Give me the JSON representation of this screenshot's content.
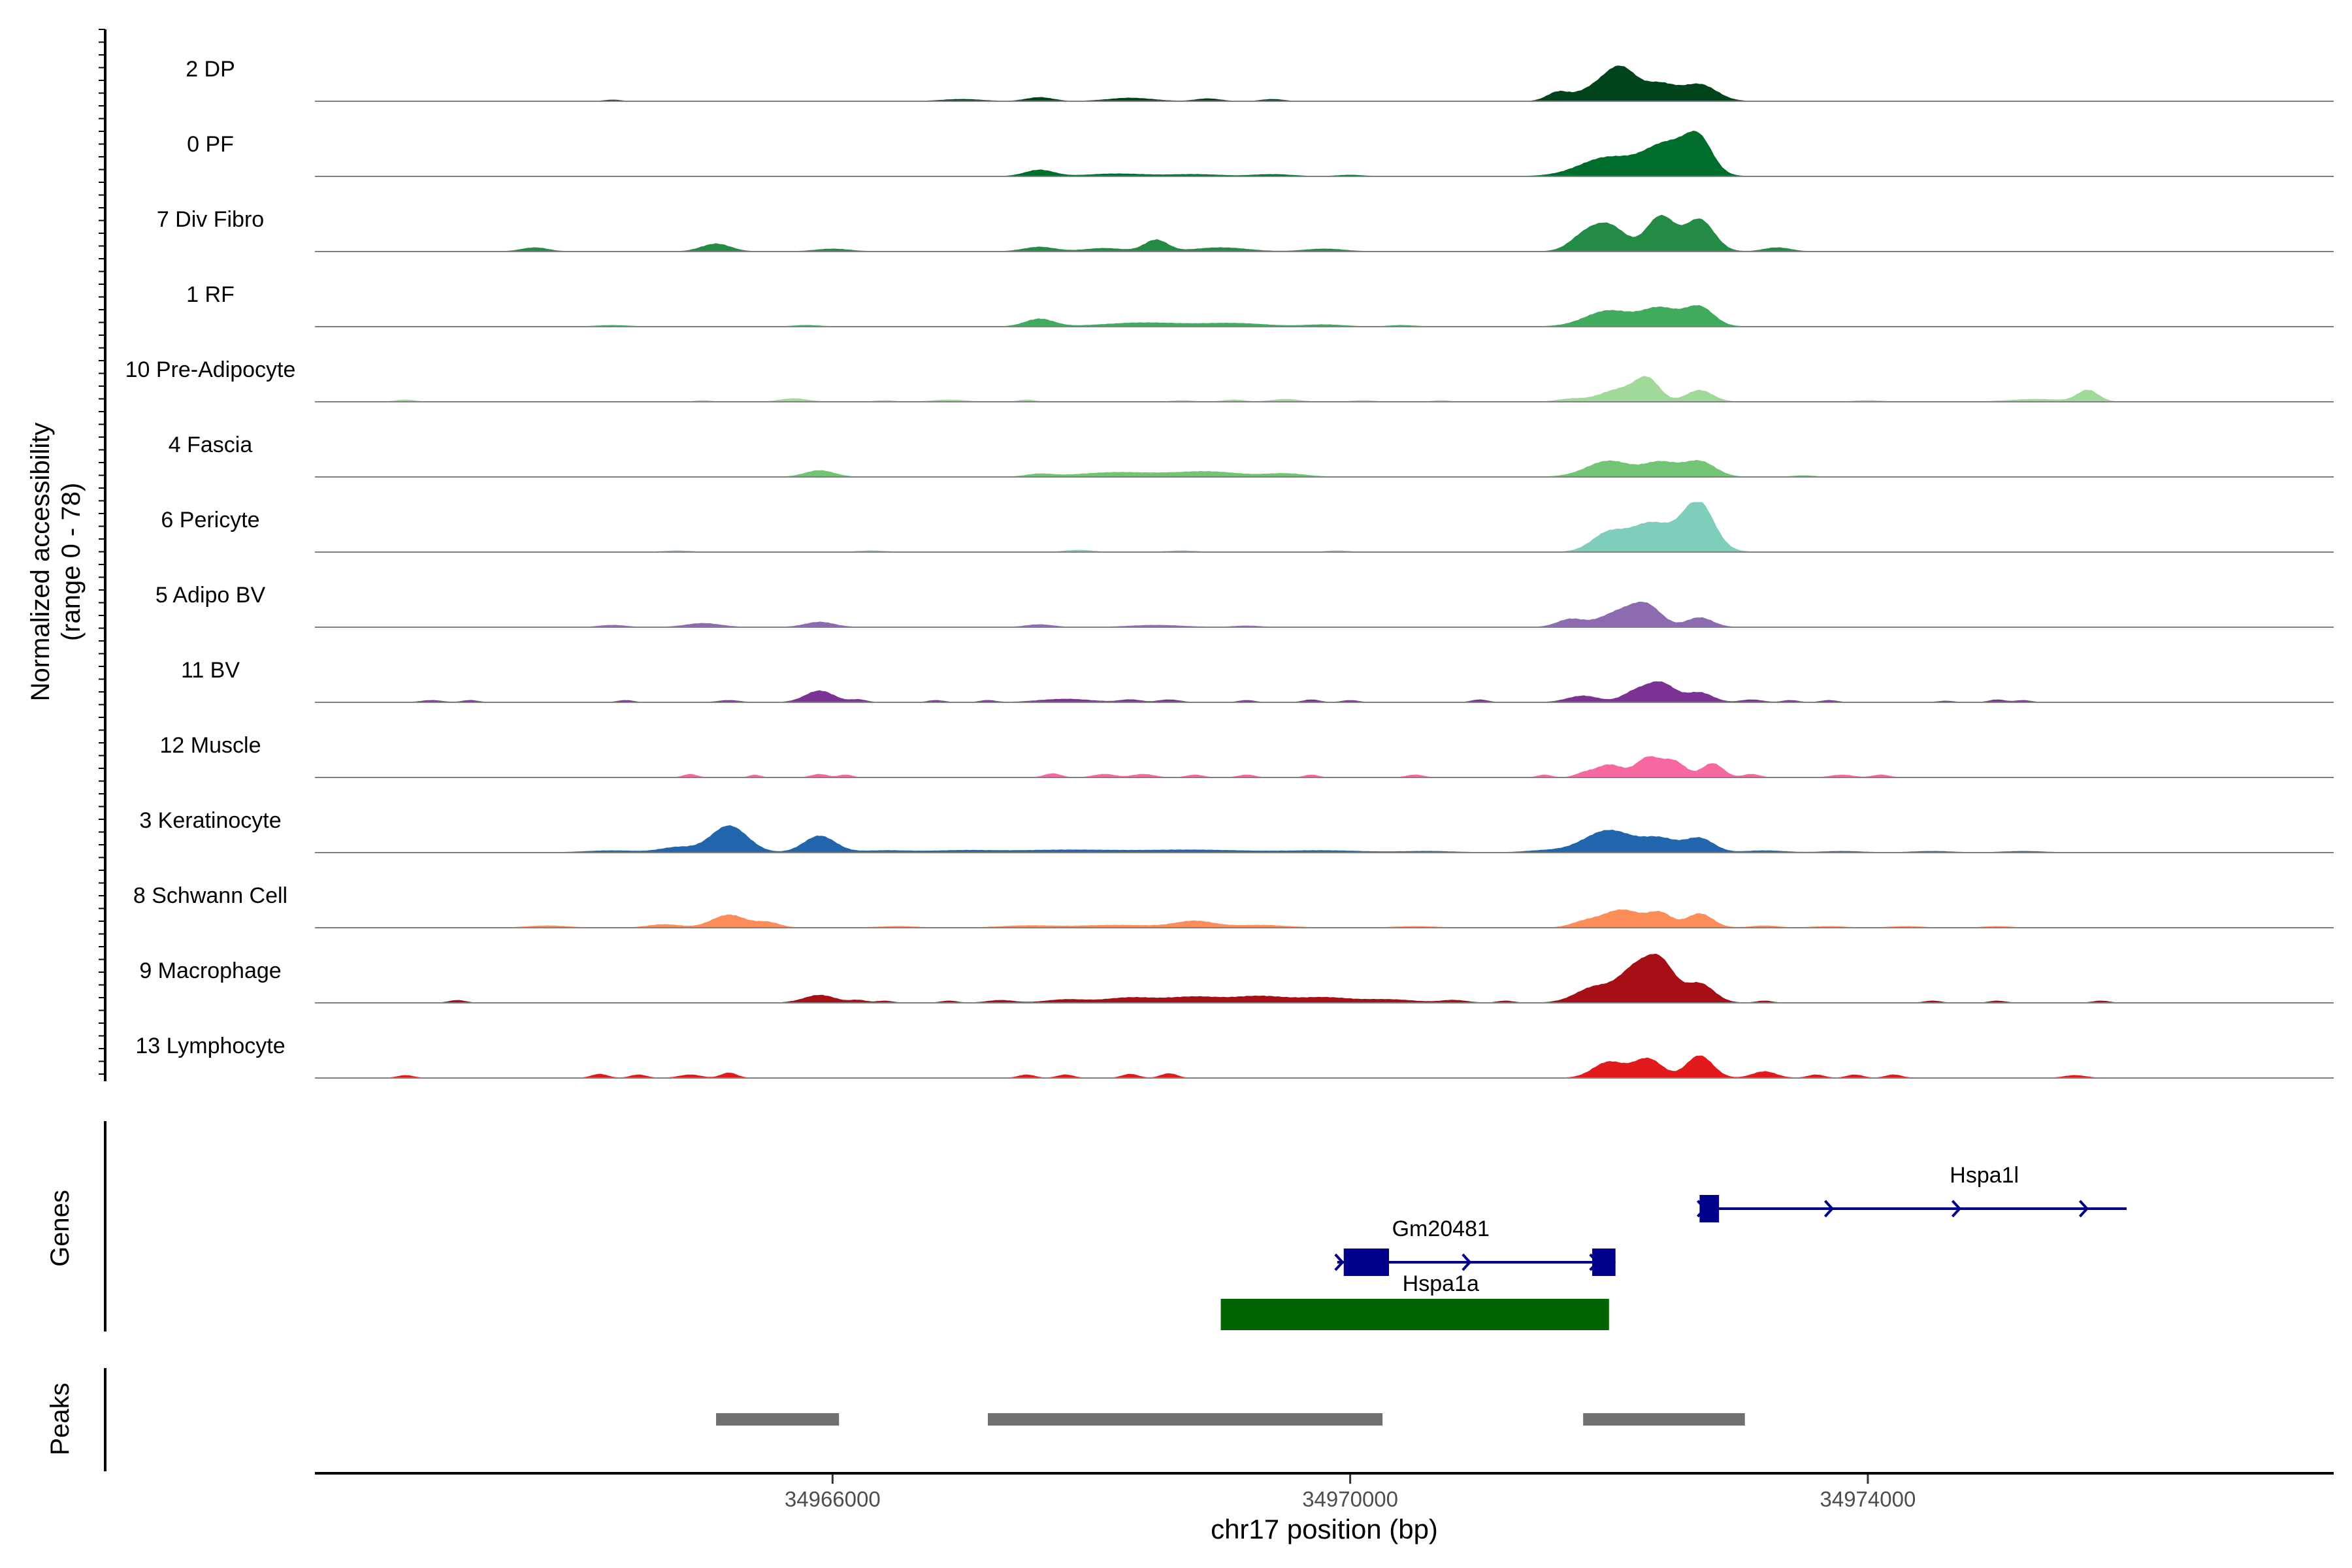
{
  "chart_data": {
    "type": "area",
    "title": "",
    "ylabel_line1": "Normalized accessibility",
    "ylabel_line2": "(range 0 - 78)",
    "xlabel": "chr17 position (bp)",
    "ylim": [
      0,
      78
    ],
    "xlim": [
      34962000,
      34977600
    ],
    "x_ticks": [
      {
        "value": 34966000,
        "label": "34966000"
      },
      {
        "value": 34970000,
        "label": "34970000"
      },
      {
        "value": 34974000,
        "label": "34974000"
      }
    ],
    "series": [
      {
        "name": "2 DP",
        "color": "#00441b",
        "peaks": [
          [
            34964300,
            2,
            60
          ],
          [
            34967000,
            3,
            150
          ],
          [
            34967600,
            6,
            100
          ],
          [
            34968300,
            5,
            170
          ],
          [
            34968900,
            4,
            90
          ],
          [
            34969400,
            3,
            80
          ],
          [
            34971600,
            12,
            80
          ],
          [
            34972000,
            30,
            190
          ],
          [
            34972100,
            28,
            110
          ],
          [
            34972400,
            24,
            120
          ],
          [
            34972700,
            26,
            130
          ]
        ]
      },
      {
        "name": "0 PF",
        "color": "#006d2c",
        "peaks": [
          [
            34967600,
            10,
            110
          ],
          [
            34968200,
            4,
            220
          ],
          [
            34968800,
            3,
            200
          ],
          [
            34969400,
            3,
            150
          ],
          [
            34970000,
            2,
            100
          ],
          [
            34972000,
            30,
            220
          ],
          [
            34972400,
            35,
            150
          ],
          [
            34972700,
            40,
            100
          ],
          [
            34972600,
            28,
            150
          ]
        ]
      },
      {
        "name": "7 Div Fibro",
        "color": "#238b45",
        "peaks": [
          [
            34963700,
            6,
            100
          ],
          [
            34965100,
            12,
            110
          ],
          [
            34966000,
            4,
            130
          ],
          [
            34967600,
            7,
            120
          ],
          [
            34968100,
            5,
            150
          ],
          [
            34968500,
            18,
            90
          ],
          [
            34969000,
            6,
            200
          ],
          [
            34969800,
            4,
            150
          ],
          [
            34971800,
            20,
            110
          ],
          [
            34972000,
            40,
            130
          ],
          [
            34972400,
            55,
            110
          ],
          [
            34972700,
            50,
            110
          ],
          [
            34973300,
            6,
            100
          ]
        ]
      },
      {
        "name": "1 RF",
        "color": "#41ab5d",
        "peaks": [
          [
            34964300,
            2,
            120
          ],
          [
            34965800,
            2,
            100
          ],
          [
            34967600,
            12,
            110
          ],
          [
            34968400,
            6,
            300
          ],
          [
            34969100,
            5,
            250
          ],
          [
            34969800,
            3,
            150
          ],
          [
            34970400,
            2,
            100
          ],
          [
            34972000,
            25,
            180
          ],
          [
            34972400,
            28,
            140
          ],
          [
            34972700,
            30,
            110
          ]
        ]
      },
      {
        "name": "10 Pre-Adipocyte",
        "color": "#a1d99b",
        "peaks": [
          [
            34962700,
            3,
            70
          ],
          [
            34965000,
            2,
            60
          ],
          [
            34965700,
            5,
            100
          ],
          [
            34966400,
            2,
            70
          ],
          [
            34966900,
            3,
            120
          ],
          [
            34967500,
            3,
            60
          ],
          [
            34968700,
            2,
            80
          ],
          [
            34969100,
            3,
            80
          ],
          [
            34969500,
            4,
            100
          ],
          [
            34970100,
            2,
            80
          ],
          [
            34970700,
            2,
            60
          ],
          [
            34971700,
            4,
            100
          ],
          [
            34972100,
            20,
            160
          ],
          [
            34972300,
            30,
            90
          ],
          [
            34972700,
            18,
            100
          ],
          [
            34974000,
            2,
            100
          ],
          [
            34975300,
            4,
            200
          ],
          [
            34975700,
            18,
            80
          ]
        ]
      },
      {
        "name": "4 Fascia",
        "color": "#74c476",
        "peaks": [
          [
            34965900,
            10,
            110
          ],
          [
            34967600,
            4,
            100
          ],
          [
            34968200,
            7,
            300
          ],
          [
            34968900,
            8,
            250
          ],
          [
            34969500,
            5,
            150
          ],
          [
            34972000,
            25,
            170
          ],
          [
            34972400,
            22,
            130
          ],
          [
            34972700,
            24,
            120
          ],
          [
            34973500,
            2,
            80
          ]
        ]
      },
      {
        "name": "6 Pericyte",
        "color": "#7fcdbb",
        "peaks": [
          [
            34964800,
            2,
            100
          ],
          [
            34966300,
            2,
            100
          ],
          [
            34967900,
            3,
            100
          ],
          [
            34968700,
            2,
            100
          ],
          [
            34969900,
            2,
            80
          ],
          [
            34972000,
            30,
            130
          ],
          [
            34972300,
            38,
            140
          ],
          [
            34972700,
            55,
            110
          ],
          [
            34972600,
            30,
            170
          ]
        ]
      },
      {
        "name": "5 Adipo BV",
        "color": "#8c6bb1",
        "peaks": [
          [
            34964300,
            3,
            100
          ],
          [
            34965000,
            6,
            130
          ],
          [
            34965900,
            8,
            110
          ],
          [
            34967600,
            4,
            100
          ],
          [
            34968500,
            3,
            200
          ],
          [
            34969200,
            2,
            100
          ],
          [
            34971700,
            12,
            100
          ],
          [
            34972100,
            25,
            160
          ],
          [
            34972300,
            26,
            110
          ],
          [
            34972700,
            15,
            100
          ]
        ]
      },
      {
        "name": "11 BV",
        "color": "#7b3294",
        "peaks": [
          [
            34962900,
            3,
            80
          ],
          [
            34963200,
            3,
            60
          ],
          [
            34964400,
            3,
            60
          ],
          [
            34965200,
            3,
            80
          ],
          [
            34965900,
            18,
            110
          ],
          [
            34966200,
            4,
            60
          ],
          [
            34966800,
            3,
            60
          ],
          [
            34967200,
            3,
            60
          ],
          [
            34967800,
            5,
            200
          ],
          [
            34968300,
            4,
            80
          ],
          [
            34968600,
            4,
            80
          ],
          [
            34969200,
            3,
            60
          ],
          [
            34969700,
            4,
            60
          ],
          [
            34970000,
            3,
            60
          ],
          [
            34971000,
            4,
            60
          ],
          [
            34971800,
            10,
            120
          ],
          [
            34972200,
            15,
            100
          ],
          [
            34972400,
            30,
            110
          ],
          [
            34972700,
            15,
            100
          ],
          [
            34973100,
            4,
            80
          ],
          [
            34973400,
            3,
            60
          ],
          [
            34973700,
            3,
            60
          ],
          [
            34974600,
            2,
            60
          ],
          [
            34975000,
            4,
            60
          ],
          [
            34975200,
            3,
            60
          ]
        ]
      },
      {
        "name": "12 Muscle",
        "color": "#f768a1",
        "peaks": [
          [
            34964900,
            5,
            50
          ],
          [
            34965400,
            4,
            40
          ],
          [
            34965900,
            5,
            60
          ],
          [
            34966100,
            4,
            50
          ],
          [
            34967700,
            6,
            60
          ],
          [
            34968100,
            5,
            80
          ],
          [
            34968400,
            5,
            80
          ],
          [
            34968800,
            4,
            60
          ],
          [
            34969200,
            4,
            60
          ],
          [
            34969700,
            4,
            50
          ],
          [
            34970500,
            4,
            60
          ],
          [
            34971500,
            4,
            50
          ],
          [
            34971800,
            5,
            60
          ],
          [
            34972000,
            20,
            110
          ],
          [
            34972300,
            30,
            90
          ],
          [
            34972500,
            25,
            90
          ],
          [
            34972800,
            22,
            80
          ],
          [
            34973100,
            5,
            60
          ],
          [
            34973800,
            4,
            80
          ],
          [
            34974100,
            4,
            60
          ]
        ]
      },
      {
        "name": "3 Keratinocyte",
        "color": "#2166ac",
        "peaks": [
          [
            34964300,
            3,
            200
          ],
          [
            34964800,
            8,
            130
          ],
          [
            34965200,
            42,
            140
          ],
          [
            34965900,
            26,
            120
          ],
          [
            34966400,
            3,
            200
          ],
          [
            34967000,
            3,
            250
          ],
          [
            34967800,
            4,
            400
          ],
          [
            34968800,
            4,
            400
          ],
          [
            34969800,
            3,
            300
          ],
          [
            34970600,
            2,
            200
          ],
          [
            34971500,
            3,
            150
          ],
          [
            34972000,
            35,
            190
          ],
          [
            34972400,
            20,
            130
          ],
          [
            34972700,
            22,
            110
          ],
          [
            34973200,
            3,
            150
          ],
          [
            34973800,
            2,
            150
          ],
          [
            34974500,
            2,
            150
          ],
          [
            34975200,
            2,
            150
          ]
        ]
      },
      {
        "name": "8 Schwann Cell",
        "color": "#fc8d59",
        "peaks": [
          [
            34963800,
            3,
            150
          ],
          [
            34964700,
            5,
            120
          ],
          [
            34965200,
            20,
            130
          ],
          [
            34965500,
            8,
            90
          ],
          [
            34966500,
            2,
            150
          ],
          [
            34967500,
            3,
            200
          ],
          [
            34968200,
            4,
            300
          ],
          [
            34968800,
            10,
            150
          ],
          [
            34969300,
            4,
            200
          ],
          [
            34970500,
            2,
            150
          ],
          [
            34971800,
            7,
            100
          ],
          [
            34972100,
            28,
            160
          ],
          [
            34972400,
            20,
            90
          ],
          [
            34972700,
            22,
            100
          ],
          [
            34973200,
            3,
            100
          ],
          [
            34973700,
            2,
            120
          ],
          [
            34974300,
            2,
            120
          ],
          [
            34975000,
            2,
            100
          ]
        ]
      },
      {
        "name": "9 Macrophage",
        "color": "#a50f15",
        "peaks": [
          [
            34963100,
            4,
            60
          ],
          [
            34965900,
            12,
            120
          ],
          [
            34966200,
            4,
            60
          ],
          [
            34966400,
            3,
            60
          ],
          [
            34966900,
            3,
            60
          ],
          [
            34967300,
            4,
            100
          ],
          [
            34967800,
            5,
            150
          ],
          [
            34968300,
            8,
            200
          ],
          [
            34968800,
            9,
            200
          ],
          [
            34969300,
            10,
            200
          ],
          [
            34969800,
            8,
            200
          ],
          [
            34970300,
            5,
            200
          ],
          [
            34970800,
            4,
            100
          ],
          [
            34971200,
            3,
            60
          ],
          [
            34971900,
            25,
            150
          ],
          [
            34972200,
            48,
            120
          ],
          [
            34972400,
            60,
            110
          ],
          [
            34972700,
            30,
            110
          ],
          [
            34973200,
            3,
            60
          ],
          [
            34974500,
            3,
            60
          ],
          [
            34975000,
            3,
            60
          ],
          [
            34975800,
            3,
            60
          ]
        ]
      },
      {
        "name": "13 Lymphocyte",
        "color": "#e31a1c",
        "peaks": [
          [
            34962700,
            4,
            60
          ],
          [
            34964200,
            6,
            60
          ],
          [
            34964500,
            5,
            60
          ],
          [
            34964900,
            5,
            80
          ],
          [
            34965200,
            8,
            60
          ],
          [
            34967500,
            5,
            60
          ],
          [
            34967800,
            5,
            60
          ],
          [
            34968300,
            6,
            60
          ],
          [
            34968600,
            7,
            60
          ],
          [
            34972000,
            25,
            120
          ],
          [
            34972300,
            30,
            110
          ],
          [
            34972700,
            35,
            100
          ],
          [
            34973200,
            10,
            90
          ],
          [
            34973600,
            5,
            60
          ],
          [
            34973900,
            5,
            60
          ],
          [
            34974200,
            5,
            60
          ],
          [
            34975600,
            4,
            80
          ]
        ]
      }
    ],
    "genes": [
      {
        "name": "Hspa1l",
        "color": "#00008b",
        "start": 34972700,
        "end": 34976000,
        "strand": "+",
        "exons": [
          [
            34972700,
            34972850
          ]
        ],
        "label_pos": 34974900,
        "row": 0
      },
      {
        "name": "Gm20481",
        "color": "#00008b",
        "start": 34969900,
        "end": 34972050,
        "strand": "+",
        "exons": [
          [
            34969950,
            34970300
          ],
          [
            34971870,
            34972050
          ]
        ],
        "label_pos": 34970700,
        "row": 1
      },
      {
        "name": "Hspa1a",
        "color": "#006400",
        "start": 34969000,
        "end": 34972000,
        "strand": "",
        "exons": [
          [
            34969000,
            34972000
          ]
        ],
        "label_pos": 34970700,
        "row": 2
      }
    ],
    "peaks_track": [
      [
        34965100,
        34966050
      ],
      [
        34967200,
        34970250
      ],
      [
        34971800,
        34973050
      ]
    ],
    "panel_labels": {
      "genes": "Genes",
      "peaks": "Peaks"
    }
  }
}
